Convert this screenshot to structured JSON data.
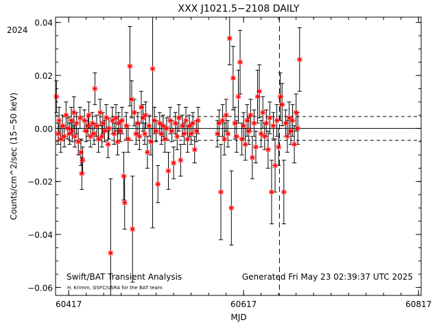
{
  "chart_data": {
    "type": "scatter",
    "title": "XXX J1021.5−2108 DAILY",
    "year_label": "2024",
    "xlabel": "MJD",
    "ylabel": "Counts/cm^2/sec (15−50 keV)",
    "xlim": [
      60402,
      60820
    ],
    "ylim": [
      -0.063,
      0.042
    ],
    "xticks": [
      60417,
      60617,
      60817
    ],
    "xtick_labels": [
      "60417",
      "60617",
      "60817"
    ],
    "yticks": [
      -0.06,
      -0.04,
      -0.02,
      0.0,
      0.02,
      0.04
    ],
    "ytick_labels": [
      "−0.06",
      "−0.04",
      "−0.02",
      "0.00",
      "0.02",
      "0.04"
    ],
    "zero_line": 0.0,
    "dashed_levels": [
      0.0045,
      -0.0045
    ],
    "vertical_dashed_line_x": 60658,
    "marker_color": "#ff0000",
    "series": [
      {
        "points": [
          [
            60403,
            0.012,
            0.006
          ],
          [
            60405,
            -0.002,
            0.004
          ],
          [
            60406,
            0.003,
            0.005
          ],
          [
            60408,
            -0.004,
            0.005
          ],
          [
            60410,
            0.001,
            0.004
          ],
          [
            60412,
            -0.003,
            0.004
          ],
          [
            60414,
            0.005,
            0.005
          ],
          [
            60416,
            0.0,
            0.004
          ],
          [
            60418,
            -0.002,
            0.004
          ],
          [
            60420,
            0.003,
            0.005
          ],
          [
            60421,
            -0.001,
            0.004
          ],
          [
            60423,
            0.006,
            0.006
          ],
          [
            60424,
            -0.003,
            0.004
          ],
          [
            60426,
            0.002,
            0.004
          ],
          [
            60428,
            -0.005,
            0.005
          ],
          [
            60430,
            0.004,
            0.004
          ],
          [
            60431,
            -0.009,
            0.005
          ],
          [
            60432,
            -0.017,
            0.006
          ],
          [
            60433,
            -0.012,
            0.005
          ],
          [
            60435,
            0.003,
            0.004
          ],
          [
            60437,
            -0.001,
            0.004
          ],
          [
            60439,
            0.001,
            0.004
          ],
          [
            60440,
            0.005,
            0.005
          ],
          [
            60442,
            -0.003,
            0.004
          ],
          [
            60444,
            0.002,
            0.004
          ],
          [
            60446,
            -0.002,
            0.004
          ],
          [
            60447,
            0.015,
            0.006
          ],
          [
            60449,
            0.001,
            0.004
          ],
          [
            60451,
            -0.004,
            0.005
          ],
          [
            60453,
            0.006,
            0.005
          ],
          [
            60455,
            -0.003,
            0.004
          ],
          [
            60456,
            0.002,
            0.004
          ],
          [
            60458,
            -0.001,
            0.004
          ],
          [
            60460,
            0.004,
            0.005
          ],
          [
            60462,
            -0.006,
            0.005
          ],
          [
            60463,
            0.0,
            0.004
          ],
          [
            60465,
            -0.047,
            0.028
          ],
          [
            60467,
            0.003,
            0.005
          ],
          [
            60469,
            -0.002,
            0.004
          ],
          [
            60471,
            0.004,
            0.005
          ],
          [
            60473,
            -0.005,
            0.005
          ],
          [
            60474,
            0.002,
            0.004
          ],
          [
            60476,
            -0.001,
            0.004
          ],
          [
            60478,
            0.003,
            0.005
          ],
          [
            60480,
            -0.018,
            0.009
          ],
          [
            60481,
            -0.028,
            0.01
          ],
          [
            60483,
            0.001,
            0.005
          ],
          [
            60485,
            -0.004,
            0.005
          ],
          [
            60487,
            0.0235,
            0.015
          ],
          [
            60489,
            0.011,
            0.007
          ],
          [
            60490,
            -0.038,
            0.02
          ],
          [
            60492,
            0.006,
            0.005
          ],
          [
            60494,
            -0.002,
            0.004
          ],
          [
            60496,
            0.002,
            0.004
          ],
          [
            60498,
            -0.003,
            0.005
          ],
          [
            60500,
            0.008,
            0.006
          ],
          [
            60502,
            0.004,
            0.005
          ],
          [
            60504,
            -0.002,
            0.004
          ],
          [
            60505,
            0.005,
            0.005
          ],
          [
            60507,
            -0.009,
            0.006
          ],
          [
            60509,
            0.001,
            0.004
          ],
          [
            60511,
            -0.005,
            0.005
          ],
          [
            60513,
            0.0225,
            0.06
          ],
          [
            60515,
            0.003,
            0.005
          ],
          [
            60517,
            -0.001,
            0.004
          ],
          [
            60519,
            -0.021,
            0.007
          ],
          [
            60521,
            0.002,
            0.004
          ],
          [
            60523,
            -0.002,
            0.004
          ],
          [
            60525,
            0.001,
            0.004
          ],
          [
            60527,
            -0.004,
            0.005
          ],
          [
            60529,
            0.0,
            0.004
          ],
          [
            60531,
            -0.016,
            0.007
          ],
          [
            60533,
            0.003,
            0.005
          ],
          [
            60535,
            -0.001,
            0.004
          ],
          [
            60537,
            -0.013,
            0.006
          ],
          [
            60539,
            0.002,
            0.004
          ],
          [
            60541,
            -0.003,
            0.005
          ],
          [
            60543,
            0.004,
            0.005
          ],
          [
            60545,
            -0.012,
            0.006
          ],
          [
            60547,
            0.001,
            0.004
          ],
          [
            60549,
            -0.002,
            0.004
          ],
          [
            60551,
            0.003,
            0.005
          ],
          [
            60553,
            -0.004,
            0.005
          ],
          [
            60555,
            0.001,
            0.004
          ],
          [
            60557,
            -0.002,
            0.004
          ],
          [
            60559,
            0.002,
            0.004
          ],
          [
            60561,
            -0.008,
            0.005
          ],
          [
            60563,
            -0.001,
            0.004
          ],
          [
            60565,
            0.003,
            0.005
          ],
          [
            60587,
            -0.002,
            0.005
          ],
          [
            60589,
            0.002,
            0.005
          ],
          [
            60591,
            -0.024,
            0.018
          ],
          [
            60593,
            0.003,
            0.006
          ],
          [
            60595,
            -0.004,
            0.006
          ],
          [
            60597,
            0.005,
            0.006
          ],
          [
            60599,
            -0.002,
            0.005
          ],
          [
            60601,
            0.034,
            0.01
          ],
          [
            60603,
            -0.03,
            0.014
          ],
          [
            60605,
            0.019,
            0.012
          ],
          [
            60607,
            0.002,
            0.006
          ],
          [
            60609,
            -0.003,
            0.006
          ],
          [
            60611,
            0.012,
            0.01
          ],
          [
            60613,
            0.025,
            0.012
          ],
          [
            60615,
            -0.004,
            0.006
          ],
          [
            60617,
            0.001,
            0.005
          ],
          [
            60619,
            -0.006,
            0.006
          ],
          [
            60621,
            0.003,
            0.006
          ],
          [
            60623,
            -0.001,
            0.005
          ],
          [
            60625,
            0.005,
            0.006
          ],
          [
            60627,
            -0.011,
            0.008
          ],
          [
            60629,
            0.002,
            0.005
          ],
          [
            60631,
            -0.007,
            0.006
          ],
          [
            60633,
            0.012,
            0.01
          ],
          [
            60635,
            0.014,
            0.01
          ],
          [
            60637,
            -0.002,
            0.005
          ],
          [
            60639,
            0.006,
            0.006
          ],
          [
            60641,
            -0.003,
            0.005
          ],
          [
            60643,
            0.002,
            0.005
          ],
          [
            60645,
            -0.008,
            0.007
          ],
          [
            60647,
            0.004,
            0.006
          ],
          [
            60649,
            -0.024,
            0.012
          ],
          [
            60651,
            0.001,
            0.005
          ],
          [
            60653,
            -0.014,
            0.01
          ],
          [
            60655,
            0.003,
            0.006
          ],
          [
            60657,
            -0.007,
            0.007
          ],
          [
            60659,
            0.012,
            0.009
          ],
          [
            60661,
            0.009,
            0.008
          ],
          [
            60663,
            -0.024,
            0.012
          ],
          [
            60665,
            0.002,
            0.005
          ],
          [
            60667,
            -0.003,
            0.006
          ],
          [
            60669,
            0.004,
            0.006
          ],
          [
            60671,
            -0.001,
            0.005
          ],
          [
            60673,
            0.003,
            0.006
          ],
          [
            60675,
            -0.006,
            0.007
          ],
          [
            60677,
            0.006,
            0.007
          ],
          [
            60679,
            0.0,
            0.006
          ],
          [
            60681,
            0.026,
            0.012
          ]
        ]
      }
    ],
    "footer_left": "Swift/BAT Transient Analysis",
    "credit": "H. Krimm, GSFC/USRA for the BAT team",
    "footer_right": "Generated Fri May 23 02:39:37 UTC 2025"
  }
}
